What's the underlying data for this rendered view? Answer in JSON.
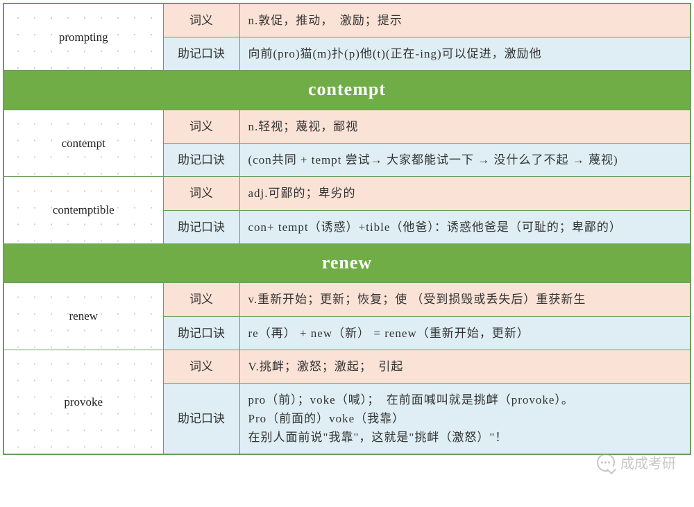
{
  "colors": {
    "border": "#6b9d5f",
    "header_bg": "#70ad47",
    "header_fg": "#ffffff",
    "meaning_bg": "#fbe2d6",
    "mnemonic_bg": "#deeef4",
    "dot_color": "#c9d4c4"
  },
  "labels": {
    "meaning": "词义",
    "mnemonic": "助记口诀"
  },
  "sections": [
    {
      "header": null,
      "entries": [
        {
          "word": "prompting",
          "meaning": "n.敦促，推动，　激励；提示",
          "mnemonic": "向前(pro)猫(m)扑(p)他(t)(正在-ing)可以促进，激励他"
        }
      ]
    },
    {
      "header": "contempt",
      "entries": [
        {
          "word": "contempt",
          "meaning": "n.轻视；蔑视，鄙视",
          "mnemonic": "(con共同 + tempt 尝试→ 大家都能试一下 → 没什么了不起 → 蔑视)"
        },
        {
          "word": "contemptible",
          "meaning": "adj.可鄙的；卑劣的",
          "mnemonic": "con+ tempt（诱惑）+tible（他爸）：诱惑他爸是（可耻的；卑鄙的）"
        }
      ]
    },
    {
      "header": "renew",
      "entries": [
        {
          "word": "renew",
          "meaning": "v.重新开始；更新；恢复；使 （受到损毁或丢失后）重获新生",
          "mnemonic": "re（再） + new（新） = renew（重新开始，更新）"
        },
        {
          "word": "provoke",
          "meaning": "V.挑衅；激怒；激起；　引起",
          "mnemonic": "pro（前）；voke（喊）；　在前面喊叫就是挑衅（provoke）。\nPro（前面的）voke（我靠）\n在别人面前说\"我靠\"，这就是\"挑衅（激怒）\"！"
        }
      ]
    }
  ],
  "watermark": {
    "text": "成成考研"
  }
}
